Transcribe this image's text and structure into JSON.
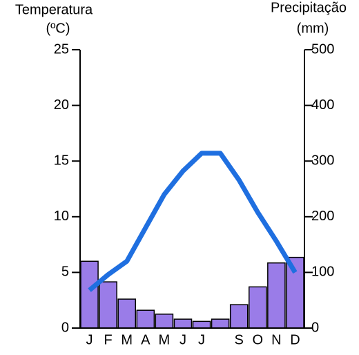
{
  "chart_data": {
    "type": "combo",
    "ylabel": [
      "Temperatura",
      "(ºC)"
    ],
    "y2label": [
      "Precipitação",
      "(mm)"
    ],
    "categories": [
      "J",
      "F",
      "M",
      "A",
      "M",
      "J",
      "J",
      null,
      "S",
      "O",
      "N",
      "D"
    ],
    "ylim": [
      0,
      25
    ],
    "yticks": [
      0,
      5,
      10,
      15,
      20,
      25
    ],
    "y2lim": [
      0,
      500
    ],
    "y2ticks": [
      0,
      100,
      200,
      300,
      400,
      500
    ],
    "series": [
      {
        "type": "bar",
        "axis": "y2",
        "color": "#9a7ce8",
        "values": [
          120,
          83,
          52,
          32,
          25,
          16,
          12,
          16,
          42,
          74,
          117,
          127
        ]
      },
      {
        "type": "line",
        "axis": "y",
        "color": "#1f6fe0",
        "values": [
          3.4,
          4.8,
          6.0,
          9.0,
          12.0,
          14.1,
          15.7,
          15.7,
          13.3,
          10.4,
          7.8,
          5.0
        ]
      }
    ]
  }
}
